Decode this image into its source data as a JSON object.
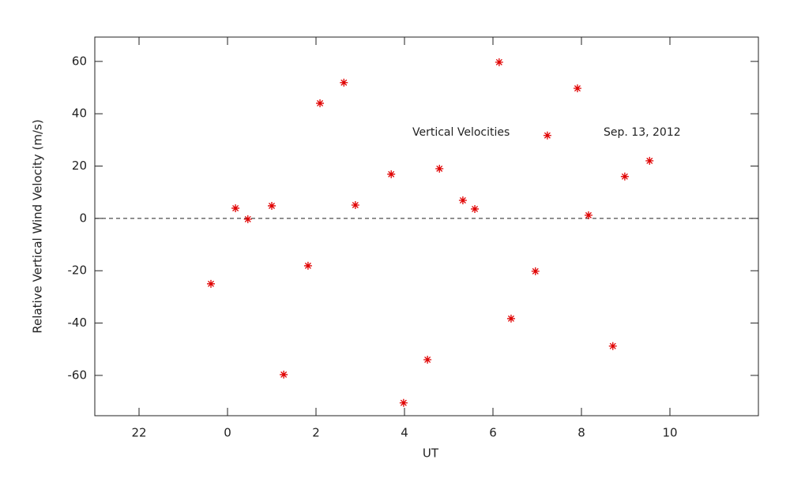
{
  "chart_data": {
    "type": "scatter",
    "xlabel": "UT",
    "ylabel": "Relative Vertical Wind Velocity (m/s)",
    "annotations": [
      "Vertical Velocities",
      "Sep. 13, 2012"
    ],
    "color": "#e00000",
    "hline": 0,
    "xlim": [
      -3,
      12
    ],
    "ylim": [
      -75.4,
      69.3
    ],
    "xticks": [
      {
        "value": -2,
        "label": "22"
      },
      0,
      2,
      4,
      6,
      8,
      10
    ],
    "yticks": [
      -60,
      -40,
      -20,
      0,
      20,
      40,
      60
    ],
    "x": [
      -0.375,
      0.18,
      0.46,
      1.0,
      1.27,
      1.82,
      2.09,
      2.63,
      2.89,
      3.7,
      3.98,
      4.52,
      4.79,
      5.32,
      5.59,
      6.14,
      6.41,
      6.96,
      7.23,
      7.91,
      8.16,
      8.71,
      8.98,
      9.54
    ],
    "values": [
      -25,
      3.9,
      -0.3,
      4.8,
      -59.7,
      -18.1,
      44,
      51.9,
      5.1,
      16.9,
      -70.5,
      -54,
      19,
      6.9,
      3.6,
      59.7,
      -38.3,
      -20.2,
      31.7,
      49.7,
      1.2,
      -48.8,
      16,
      22
    ]
  }
}
